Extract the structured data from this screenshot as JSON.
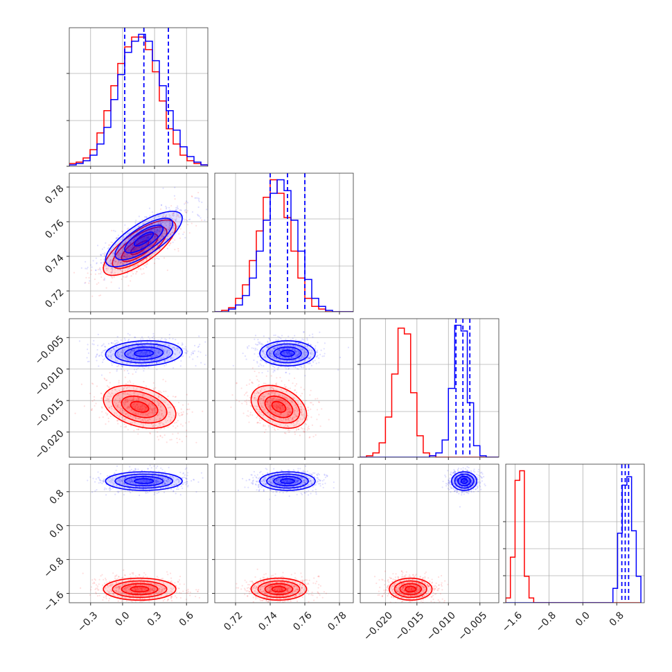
{
  "chart_data": {
    "type": "corner",
    "title": "",
    "parameters": [
      {
        "range": [
          -0.5,
          0.8
        ],
        "ticks": [
          -0.3,
          0.0,
          0.3,
          0.6
        ],
        "tick_labels": [
          "−0.3",
          "0.0",
          "0.3",
          "0.6"
        ]
      },
      {
        "range": [
          0.708,
          0.788
        ],
        "ticks": [
          0.72,
          0.74,
          0.76,
          0.78
        ],
        "tick_labels": [
          "0.72",
          "0.74",
          "0.76",
          "0.78"
        ]
      },
      {
        "range": [
          -0.024,
          -0.002
        ],
        "ticks": [
          -0.02,
          -0.015,
          -0.01,
          -0.005
        ],
        "tick_labels": [
          "−0.020",
          "−0.015",
          "−0.010",
          "−0.005"
        ]
      },
      {
        "range": [
          -1.82,
          1.45
        ],
        "ticks": [
          -1.6,
          -0.8,
          0.0,
          0.8
        ],
        "tick_labels": [
          "−1.6",
          "−0.8",
          "0.0",
          "0.8"
        ]
      }
    ],
    "grid": true,
    "series": [
      {
        "color": "#ff0000",
        "means": [
          0.16,
          0.745,
          -0.016,
          -1.5
        ],
        "stds": [
          0.17,
          0.008,
          0.0017,
          0.13
        ],
        "correlations": {
          "1_0": 0.75,
          "2_0": -0.35,
          "2_1": -0.35,
          "3_0": 0.0,
          "3_1": 0.0,
          "3_2": 0.0
        },
        "histograms": [
          {
            "edges": [
              -0.5,
              -0.435,
              -0.37,
              -0.305,
              -0.24,
              -0.175,
              -0.11,
              -0.045,
              0.02,
              0.085,
              0.15,
              0.215,
              0.28,
              0.345,
              0.41,
              0.475,
              0.54,
              0.605,
              0.67,
              0.735,
              0.8
            ],
            "counts": [
              2,
              3,
              6,
              12,
              24,
              40,
              58,
              74,
              86,
              93,
              93,
              84,
              68,
              47,
              27,
              16,
              8,
              4,
              2,
              1
            ]
          },
          {
            "edges": [
              0.708,
              0.712,
              0.716,
              0.72,
              0.724,
              0.728,
              0.732,
              0.736,
              0.74,
              0.744,
              0.748,
              0.752,
              0.756,
              0.76,
              0.764,
              0.768,
              0.772,
              0.776,
              0.78,
              0.784,
              0.788
            ],
            "counts": [
              0,
              1,
              3,
              10,
              20,
              38,
              60,
              85,
              98,
              88,
              70,
              45,
              25,
              10,
              4,
              2,
              0,
              0,
              0,
              0
            ]
          },
          {
            "edges": [
              -0.024,
              -0.023,
              -0.022,
              -0.021,
              -0.02,
              -0.019,
              -0.018,
              -0.017,
              -0.016,
              -0.015,
              -0.014,
              -0.013,
              -0.012,
              -0.011,
              -0.01,
              -0.009,
              -0.008,
              -0.007,
              -0.006,
              -0.005,
              -0.004,
              -0.003,
              -0.002
            ],
            "counts": [
              0,
              1,
              3,
              10,
              28,
              58,
              90,
              86,
              45,
              15,
              3,
              1,
              0,
              0,
              0,
              0,
              0,
              0,
              0,
              0,
              0,
              0
            ]
          },
          {
            "edges": [
              -1.82,
              -1.71,
              -1.6,
              -1.49,
              -1.38,
              -1.27,
              -1.16,
              -1.05,
              -0.94,
              -0.83,
              -0.72,
              -0.61,
              -0.5,
              -0.39,
              -0.28,
              -0.17,
              -0.06,
              0.05,
              0.16,
              0.27,
              0.38,
              0.49,
              0.6,
              0.71,
              0.82,
              0.93,
              1.04,
              1.15,
              1.26,
              1.37
            ],
            "counts": [
              4,
              38,
              102,
              110,
              22,
              4,
              0,
              0,
              0,
              0,
              0,
              0,
              0,
              0,
              0,
              0,
              0,
              0,
              0,
              0,
              0,
              0,
              0,
              0,
              0,
              0,
              0,
              0,
              0
            ]
          }
        ]
      },
      {
        "color": "#0000ff",
        "means": [
          0.2,
          0.75,
          -0.0075,
          1.05
        ],
        "stds": [
          0.18,
          0.008,
          0.001,
          0.11
        ],
        "correlations": {
          "1_0": 0.75,
          "2_0": 0.1,
          "2_1": 0.0,
          "3_0": 0.0,
          "3_1": 0.0,
          "3_2": 0.0
        },
        "histograms": [
          {
            "edges": [
              -0.5,
              -0.435,
              -0.37,
              -0.305,
              -0.24,
              -0.175,
              -0.11,
              -0.045,
              0.02,
              0.085,
              0.15,
              0.215,
              0.28,
              0.345,
              0.41,
              0.475,
              0.54,
              0.605,
              0.67,
              0.735,
              0.8
            ],
            "counts": [
              1,
              2,
              4,
              8,
              16,
              28,
              48,
              66,
              82,
              90,
              95,
              90,
              76,
              58,
              40,
              26,
              14,
              7,
              3,
              1
            ]
          },
          {
            "edges": [
              0.708,
              0.712,
              0.716,
              0.72,
              0.724,
              0.728,
              0.732,
              0.736,
              0.74,
              0.744,
              0.748,
              0.752,
              0.756,
              0.76,
              0.764,
              0.768,
              0.772,
              0.776,
              0.78,
              0.784,
              0.788
            ],
            "counts": [
              0,
              0,
              2,
              5,
              12,
              25,
              45,
              68,
              88,
              98,
              90,
              68,
              45,
              24,
              10,
              4,
              1,
              0,
              0,
              0
            ]
          },
          {
            "edges": [
              -0.024,
              -0.023,
              -0.022,
              -0.021,
              -0.02,
              -0.019,
              -0.018,
              -0.017,
              -0.016,
              -0.015,
              -0.014,
              -0.013,
              -0.012,
              -0.011,
              -0.01,
              -0.009,
              -0.008,
              -0.007,
              -0.006,
              -0.005,
              -0.004,
              -0.003,
              -0.002
            ],
            "counts": [
              0,
              0,
              0,
              0,
              0,
              0,
              0,
              0,
              0,
              0,
              0,
              1,
              3,
              12,
              48,
              92,
              88,
              38,
              8,
              1,
              0,
              0
            ]
          },
          {
            "edges": [
              -1.82,
              -1.71,
              -1.6,
              -1.49,
              -1.38,
              -1.27,
              -1.16,
              -1.05,
              -0.94,
              -0.83,
              -0.72,
              -0.61,
              -0.5,
              -0.39,
              -0.28,
              -0.17,
              -0.06,
              0.05,
              0.16,
              0.27,
              0.38,
              0.49,
              0.6,
              0.71,
              0.82,
              0.93,
              1.04,
              1.15,
              1.26,
              1.37
            ],
            "counts": [
              0,
              0,
              0,
              0,
              0,
              0,
              0,
              0,
              0,
              0,
              0,
              0,
              0,
              0,
              0,
              0,
              0,
              0,
              0,
              0,
              0,
              0,
              0,
              12,
              58,
              98,
              105,
              60,
              22
            ]
          }
        ]
      }
    ],
    "quantile_lines": {
      "color": "#0000ff",
      "style": "dashed",
      "values": [
        [
          0.02,
          0.2,
          0.43
        ],
        [
          0.74,
          0.75,
          0.76
        ],
        [
          -0.0088,
          -0.0077,
          -0.0066
        ],
        [
          0.92,
          1.0,
          1.08
        ]
      ]
    }
  }
}
